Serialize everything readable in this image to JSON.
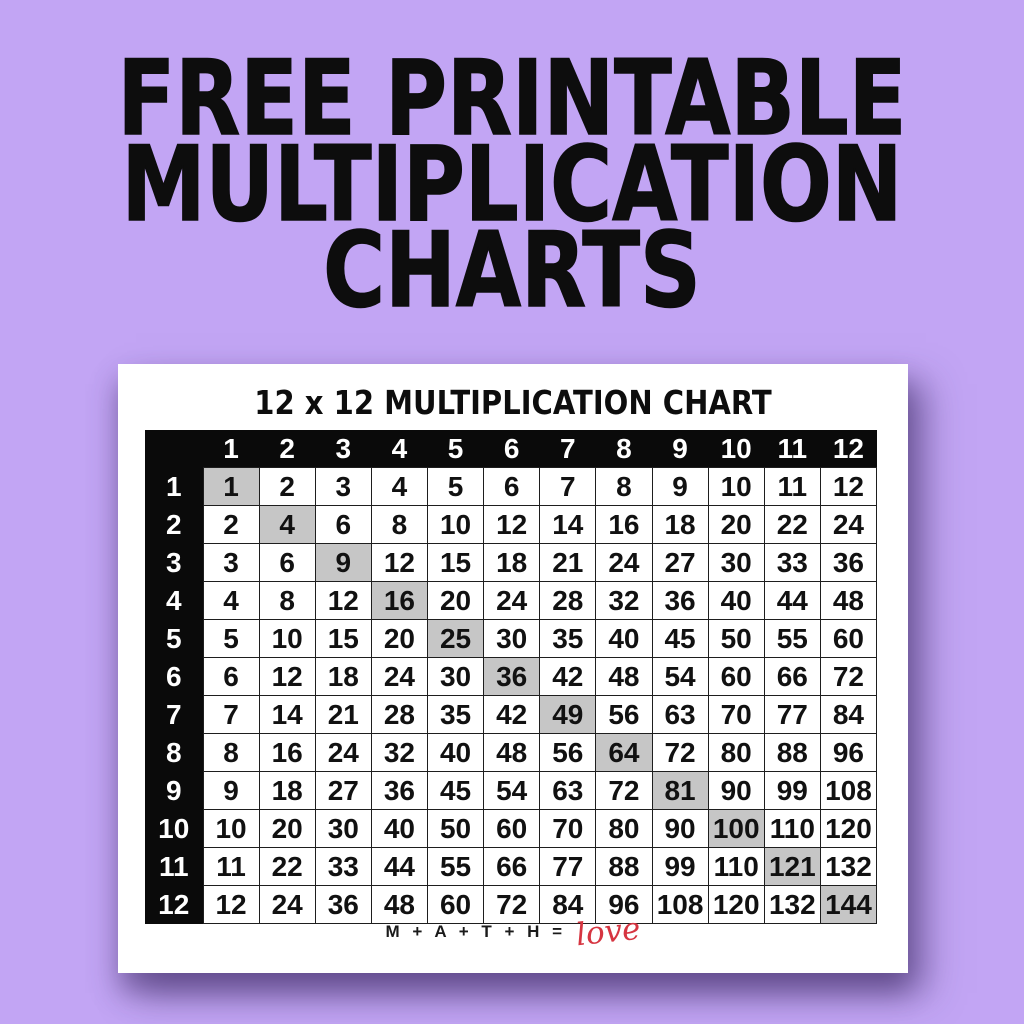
{
  "page": {
    "background_color": "#c2a5f4",
    "heading_color": "#0d0d0d",
    "heading_lines": [
      "FREE PRINTABLE",
      "MULTIPLICATION",
      "CHARTS"
    ]
  },
  "card": {
    "background_color": "#ffffff",
    "title": "12 x 12 MULTIPLICATION CHART",
    "footer_text": "M + A + T + H =",
    "footer_script": "love",
    "footer_script_color": "#d63541"
  },
  "table_style": {
    "header_bg": "#0a0a0a",
    "header_text_color": "#ffffff",
    "cell_bg": "#ffffff",
    "cell_text_color": "#111111",
    "diagonal_highlight_bg": "#c6c6c6",
    "border_color": "#1e1e1e"
  },
  "chart_data": {
    "type": "table",
    "title": "12 x 12 MULTIPLICATION CHART",
    "column_headers": [
      1,
      2,
      3,
      4,
      5,
      6,
      7,
      8,
      9,
      10,
      11,
      12
    ],
    "row_headers": [
      1,
      2,
      3,
      4,
      5,
      6,
      7,
      8,
      9,
      10,
      11,
      12
    ],
    "rows": [
      [
        1,
        2,
        3,
        4,
        5,
        6,
        7,
        8,
        9,
        10,
        11,
        12
      ],
      [
        2,
        4,
        6,
        8,
        10,
        12,
        14,
        16,
        18,
        20,
        22,
        24
      ],
      [
        3,
        6,
        9,
        12,
        15,
        18,
        21,
        24,
        27,
        30,
        33,
        36
      ],
      [
        4,
        8,
        12,
        16,
        20,
        24,
        28,
        32,
        36,
        40,
        44,
        48
      ],
      [
        5,
        10,
        15,
        20,
        25,
        30,
        35,
        40,
        45,
        50,
        55,
        60
      ],
      [
        6,
        12,
        18,
        24,
        30,
        36,
        42,
        48,
        54,
        60,
        66,
        72
      ],
      [
        7,
        14,
        21,
        28,
        35,
        42,
        49,
        56,
        63,
        70,
        77,
        84
      ],
      [
        8,
        16,
        24,
        32,
        40,
        48,
        56,
        64,
        72,
        80,
        88,
        96
      ],
      [
        9,
        18,
        27,
        36,
        45,
        54,
        63,
        72,
        81,
        90,
        99,
        108
      ],
      [
        10,
        20,
        30,
        40,
        50,
        60,
        70,
        80,
        90,
        100,
        110,
        120
      ],
      [
        11,
        22,
        33,
        44,
        55,
        66,
        77,
        88,
        99,
        110,
        121,
        132
      ],
      [
        12,
        24,
        36,
        48,
        60,
        72,
        84,
        96,
        108,
        120,
        132,
        144
      ]
    ],
    "highlighted_values": [
      1,
      4,
      9,
      16,
      25,
      36,
      49,
      64,
      81,
      100,
      121,
      144
    ],
    "highlight_rule": "diagonal cells where row equals column (perfect squares)",
    "legend_position": "none",
    "grid": true
  }
}
